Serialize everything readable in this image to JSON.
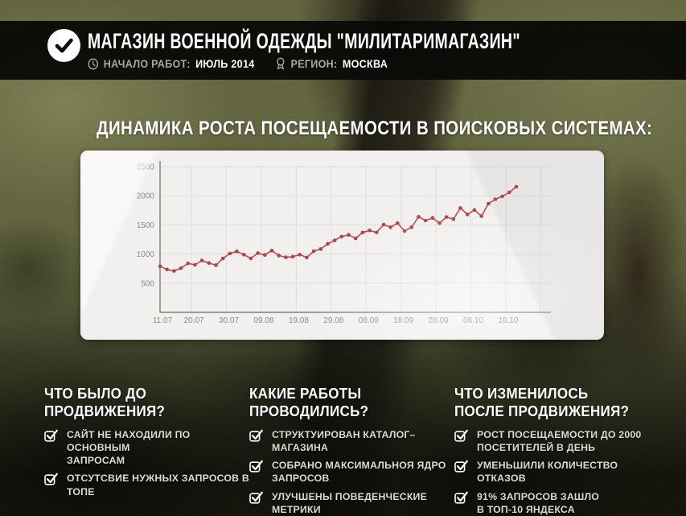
{
  "header": {
    "title": "МАГАЗИН ВОЕННОЙ ОДЕЖДЫ \"МИЛИТАРИМАГАЗИН\"",
    "start_label": "НАЧАЛО РАБОТ:",
    "start_value": "ИЮЛЬ 2014",
    "region_label": "РЕГИОН:",
    "region_value": "МОСКВА"
  },
  "section_title": "ДИНАМИКА РОСТА ПОСЕЩАЕМОСТИ В ПОИСКОВЫХ СИСТЕМАХ:",
  "chart_data": {
    "type": "line",
    "title": "Динамика роста посещаемости в поисковых системах",
    "x_tick_labels": [
      "11.07",
      "20.07",
      "30.07",
      "09.08",
      "19.08",
      "29.08",
      "08.09",
      "18.09",
      "28.09",
      "08.10",
      "18.10"
    ],
    "x_tick_days": [
      0,
      9,
      19,
      29,
      39,
      49,
      59,
      69,
      79,
      89,
      99
    ],
    "extra_gridline_days": [
      109
    ],
    "point_interval_days": 2,
    "total_days": 102,
    "y_ticks": [
      500,
      1000,
      1500,
      2000,
      2500
    ],
    "ylim": [
      0,
      2500
    ],
    "grid": true,
    "legend": "none",
    "line_color": "#bf4a52",
    "dot_color": "#b2434b",
    "values": [
      790,
      735,
      710,
      760,
      840,
      815,
      890,
      845,
      810,
      925,
      1010,
      1045,
      990,
      925,
      1015,
      985,
      1060,
      975,
      945,
      955,
      990,
      940,
      1050,
      1085,
      1175,
      1235,
      1300,
      1330,
      1270,
      1370,
      1405,
      1370,
      1505,
      1460,
      1530,
      1395,
      1460,
      1640,
      1575,
      1620,
      1530,
      1635,
      1600,
      1790,
      1680,
      1755,
      1650,
      1865,
      1940,
      1990,
      2060,
      2155
    ]
  },
  "columns": [
    {
      "title": "ЧТО БЫЛО ДО\nПРОДВИЖЕНИЯ?",
      "items": [
        "САЙТ НЕ НАХОДИЛИ ПО ОСНОВНЫМ\nЗАПРОСАМ",
        "ОТСУТСВИЕ НУЖНЫХ ЗАПРОСОВ В ТОПЕ"
      ]
    },
    {
      "title": "КАКИЕ РАБОТЫ\nПРОВОДИЛИСЬ?",
      "items": [
        "СТРУКТУИРОВАН КАТАЛОГ–МАГАЗИНА",
        "СОБРАНО МАКСИМАЛЬНОЯ ЯДРО\nЗАПРОСОВ",
        "УЛУЧШЕНЫ ПОВЕДЕНЧЕСКИЕ МЕТРИКИ"
      ]
    },
    {
      "title": "ЧТО ИЗМЕНИЛОСЬ\nПОСЛЕ ПРОДВИЖЕНИЯ?",
      "items": [
        "РОСТ ПОСЕЩАЕМОСТИ ДО 2000\nПОСЕТИТЕЛЕЙ В ДЕНЬ",
        "УМЕНЬШИЛИ КОЛИЧЕСТВО\nОТКАЗОВ",
        "91% ЗАПРОСОВ ЗАШЛО\nВ ТОП-10 ЯНДЕКСА"
      ]
    }
  ],
  "icons": {
    "header_badge": "check-circle",
    "start": "clock",
    "region": "medal",
    "list_bullet": "checkbox-checked"
  },
  "colors": {
    "accent_line": "#bf4a52",
    "header_bg": "#0a0a08",
    "card_bg": "#f1f0ee",
    "text_light": "#ffffff"
  }
}
